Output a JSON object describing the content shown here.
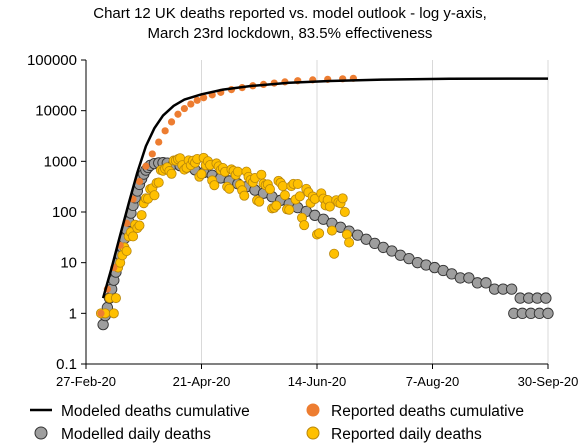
{
  "chart_data": {
    "type": "scatter",
    "title_line1": "Chart 12 UK deaths reported vs. model outlook - log y-axis,",
    "title_line2": "March 23rd lockdown, 83.5% effectiveness",
    "y_scale": "log",
    "ylim": [
      0.1,
      100000
    ],
    "y_ticks": [
      "0.1",
      "1",
      "10",
      "100",
      "1000",
      "10000",
      "100000"
    ],
    "xlim": [
      "2020-02-27",
      "2020-09-30"
    ],
    "x_ticks": [
      "27-Feb-20",
      "21-Apr-20",
      "14-Jun-20",
      "7-Aug-20",
      "30-Sep-20"
    ],
    "grid": "vertical",
    "legend_position": "bottom",
    "colors": {
      "modeled_cumulative": "#000000",
      "reported_cumulative": "#ED7D31",
      "modelled_daily_fill": "#9E9E9E",
      "reported_daily_fill": "#FFC000"
    },
    "series": [
      {
        "name": "Modeled deaths cumulative",
        "style": "line",
        "points": [
          [
            "2020-03-06",
            2
          ],
          [
            "2020-03-10",
            8
          ],
          [
            "2020-03-14",
            35
          ],
          [
            "2020-03-18",
            150
          ],
          [
            "2020-03-22",
            600
          ],
          [
            "2020-03-26",
            2000
          ],
          [
            "2020-03-30",
            4500
          ],
          [
            "2020-04-03",
            8000
          ],
          [
            "2020-04-08",
            12500
          ],
          [
            "2020-04-13",
            16500
          ],
          [
            "2020-04-21",
            21000
          ],
          [
            "2020-05-01",
            26000
          ],
          [
            "2020-05-15",
            31000
          ],
          [
            "2020-06-01",
            35500
          ],
          [
            "2020-06-20",
            38500
          ],
          [
            "2020-07-15",
            41000
          ],
          [
            "2020-08-15",
            42500
          ],
          [
            "2020-09-30",
            43000
          ]
        ]
      },
      {
        "name": "Reported deaths cumulative",
        "style": "marker",
        "points": [
          [
            "2020-03-05",
            1
          ],
          [
            "2020-03-08",
            3
          ],
          [
            "2020-03-11",
            8
          ],
          [
            "2020-03-14",
            22
          ],
          [
            "2020-03-17",
            60
          ],
          [
            "2020-03-20",
            180
          ],
          [
            "2020-03-23",
            400
          ],
          [
            "2020-03-26",
            800
          ],
          [
            "2020-03-29",
            1400
          ],
          [
            "2020-04-01",
            2400
          ],
          [
            "2020-04-04",
            4000
          ],
          [
            "2020-04-07",
            6000
          ],
          [
            "2020-04-10",
            8500
          ],
          [
            "2020-04-13",
            11000
          ],
          [
            "2020-04-16",
            13500
          ],
          [
            "2020-04-19",
            16000
          ],
          [
            "2020-04-22",
            18000
          ],
          [
            "2020-04-26",
            20500
          ],
          [
            "2020-04-30",
            23000
          ],
          [
            "2020-05-05",
            26000
          ],
          [
            "2020-05-10",
            28500
          ],
          [
            "2020-05-15",
            31000
          ],
          [
            "2020-05-20",
            33000
          ],
          [
            "2020-05-25",
            35000
          ],
          [
            "2020-05-30",
            37000
          ],
          [
            "2020-06-05",
            39000
          ],
          [
            "2020-06-12",
            40500
          ],
          [
            "2020-06-19",
            41500
          ],
          [
            "2020-06-26",
            42500
          ],
          [
            "2020-07-01",
            43500
          ]
        ]
      },
      {
        "name": "Modelled daily deaths",
        "style": "marker",
        "points": [
          [
            "2020-03-06",
            0.6
          ],
          [
            "2020-03-07",
            0.9
          ],
          [
            "2020-03-08",
            1.3
          ],
          [
            "2020-03-09",
            2
          ],
          [
            "2020-03-10",
            3
          ],
          [
            "2020-03-11",
            4.5
          ],
          [
            "2020-03-12",
            6.5
          ],
          [
            "2020-03-13",
            10
          ],
          [
            "2020-03-14",
            14
          ],
          [
            "2020-03-15",
            20
          ],
          [
            "2020-03-16",
            30
          ],
          [
            "2020-03-17",
            45
          ],
          [
            "2020-03-18",
            65
          ],
          [
            "2020-03-19",
            95
          ],
          [
            "2020-03-20",
            135
          ],
          [
            "2020-03-21",
            190
          ],
          [
            "2020-03-22",
            260
          ],
          [
            "2020-03-23",
            350
          ],
          [
            "2020-03-24",
            450
          ],
          [
            "2020-03-25",
            560
          ],
          [
            "2020-03-26",
            670
          ],
          [
            "2020-03-27",
            760
          ],
          [
            "2020-03-28",
            830
          ],
          [
            "2020-03-30",
            900
          ],
          [
            "2020-04-01",
            930
          ],
          [
            "2020-04-03",
            940
          ],
          [
            "2020-04-05",
            920
          ],
          [
            "2020-04-08",
            880
          ],
          [
            "2020-04-11",
            820
          ],
          [
            "2020-04-14",
            760
          ],
          [
            "2020-04-18",
            680
          ],
          [
            "2020-04-22",
            600
          ],
          [
            "2020-04-26",
            530
          ],
          [
            "2020-04-30",
            470
          ],
          [
            "2020-05-04",
            410
          ],
          [
            "2020-05-08",
            360
          ],
          [
            "2020-05-12",
            315
          ],
          [
            "2020-05-16",
            270
          ],
          [
            "2020-05-20",
            235
          ],
          [
            "2020-05-24",
            200
          ],
          [
            "2020-05-28",
            170
          ],
          [
            "2020-06-01",
            145
          ],
          [
            "2020-06-05",
            122
          ],
          [
            "2020-06-09",
            103
          ],
          [
            "2020-06-13",
            86
          ],
          [
            "2020-06-17",
            72
          ],
          [
            "2020-06-21",
            60
          ],
          [
            "2020-06-25",
            50
          ],
          [
            "2020-06-29",
            42
          ],
          [
            "2020-07-03",
            35
          ],
          [
            "2020-07-07",
            29
          ],
          [
            "2020-07-11",
            24
          ],
          [
            "2020-07-15",
            20
          ],
          [
            "2020-07-19",
            17
          ],
          [
            "2020-07-23",
            14
          ],
          [
            "2020-07-27",
            12
          ],
          [
            "2020-07-31",
            10
          ],
          [
            "2020-08-04",
            9
          ],
          [
            "2020-08-08",
            8
          ],
          [
            "2020-08-12",
            7
          ],
          [
            "2020-08-16",
            6
          ],
          [
            "2020-08-20",
            5
          ],
          [
            "2020-08-24",
            5
          ],
          [
            "2020-08-28",
            4
          ],
          [
            "2020-09-01",
            4
          ],
          [
            "2020-09-05",
            3
          ],
          [
            "2020-09-09",
            3
          ],
          [
            "2020-09-13",
            3
          ],
          [
            "2020-09-17",
            2
          ],
          [
            "2020-09-21",
            2
          ],
          [
            "2020-09-25",
            2
          ],
          [
            "2020-09-29",
            2
          ],
          [
            "2020-09-14",
            1
          ],
          [
            "2020-09-18",
            1
          ],
          [
            "2020-09-22",
            1
          ],
          [
            "2020-09-26",
            1
          ],
          [
            "2020-09-30",
            1
          ]
        ]
      },
      {
        "name": "Reported daily deaths",
        "style": "marker",
        "points": [
          [
            "2020-03-05",
            1
          ],
          [
            "2020-03-07",
            1
          ],
          [
            "2020-03-09",
            2
          ],
          [
            "2020-03-11",
            1
          ],
          [
            "2020-03-12",
            2
          ],
          [
            "2020-03-13",
            8
          ],
          [
            "2020-03-14",
            10
          ],
          [
            "2020-03-15",
            14
          ],
          [
            "2020-03-16",
            20
          ],
          [
            "2020-03-17",
            17
          ],
          [
            "2020-03-18",
            33
          ],
          [
            "2020-03-19",
            40
          ],
          [
            "2020-03-20",
            33
          ],
          [
            "2020-03-21",
            56
          ],
          [
            "2020-03-22",
            48
          ],
          [
            "2020-03-23",
            54
          ],
          [
            "2020-03-24",
            87
          ],
          [
            "2020-03-25",
            149
          ],
          [
            "2020-03-26",
            186
          ],
          [
            "2020-03-27",
            183
          ],
          [
            "2020-03-28",
            284
          ],
          [
            "2020-03-29",
            294
          ],
          [
            "2020-03-30",
            214
          ],
          [
            "2020-03-31",
            374
          ],
          [
            "2020-04-01",
            382
          ],
          [
            "2020-04-02",
            670
          ],
          [
            "2020-04-03",
            652
          ],
          [
            "2020-04-04",
            714
          ],
          [
            "2020-04-05",
            760
          ],
          [
            "2020-04-06",
            644
          ],
          [
            "2020-04-07",
            568
          ],
          [
            "2020-04-08",
            1038
          ],
          [
            "2020-04-09",
            1034
          ],
          [
            "2020-04-10",
            1103
          ],
          [
            "2020-04-11",
            1152
          ],
          [
            "2020-04-12",
            839
          ],
          [
            "2020-04-13",
            686
          ],
          [
            "2020-04-14",
            744
          ],
          [
            "2020-04-15",
            1044
          ],
          [
            "2020-04-16",
            842
          ],
          [
            "2020-04-17",
            1029
          ],
          [
            "2020-04-18",
            935
          ],
          [
            "2020-04-19",
            1115
          ],
          [
            "2020-04-20",
            498
          ],
          [
            "2020-04-21",
            559
          ],
          [
            "2020-04-22",
            1172
          ],
          [
            "2020-04-23",
            837
          ],
          [
            "2020-04-24",
            1005
          ],
          [
            "2020-04-25",
            843
          ],
          [
            "2020-04-26",
            420
          ],
          [
            "2020-04-27",
            338
          ],
          [
            "2020-04-28",
            909
          ],
          [
            "2020-04-29",
            795
          ],
          [
            "2020-04-30",
            674
          ],
          [
            "2020-05-01",
            739
          ],
          [
            "2020-05-02",
            621
          ],
          [
            "2020-05-03",
            315
          ],
          [
            "2020-05-04",
            288
          ],
          [
            "2020-05-05",
            693
          ],
          [
            "2020-05-06",
            649
          ],
          [
            "2020-05-07",
            539
          ],
          [
            "2020-05-08",
            626
          ],
          [
            "2020-05-09",
            346
          ],
          [
            "2020-05-10",
            268
          ],
          [
            "2020-05-11",
            210
          ],
          [
            "2020-05-12",
            627
          ],
          [
            "2020-05-13",
            494
          ],
          [
            "2020-05-14",
            428
          ],
          [
            "2020-05-15",
            384
          ],
          [
            "2020-05-16",
            468
          ],
          [
            "2020-05-17",
            170
          ],
          [
            "2020-05-18",
            160
          ],
          [
            "2020-05-19",
            545
          ],
          [
            "2020-05-20",
            363
          ],
          [
            "2020-05-21",
            338
          ],
          [
            "2020-05-22",
            351
          ],
          [
            "2020-05-23",
            282
          ],
          [
            "2020-05-24",
            118
          ],
          [
            "2020-05-25",
            121
          ],
          [
            "2020-05-26",
            134
          ],
          [
            "2020-05-27",
            412
          ],
          [
            "2020-05-28",
            377
          ],
          [
            "2020-05-29",
            324
          ],
          [
            "2020-05-30",
            215
          ],
          [
            "2020-05-31",
            113
          ],
          [
            "2020-06-01",
            111
          ],
          [
            "2020-06-02",
            324
          ],
          [
            "2020-06-03",
            359
          ],
          [
            "2020-06-04",
            176
          ],
          [
            "2020-06-05",
            357
          ],
          [
            "2020-06-06",
            204
          ],
          [
            "2020-06-07",
            77
          ],
          [
            "2020-06-08",
            55
          ],
          [
            "2020-06-09",
            286
          ],
          [
            "2020-06-10",
            245
          ],
          [
            "2020-06-11",
            151
          ],
          [
            "2020-06-12",
            202
          ],
          [
            "2020-06-13",
            181
          ],
          [
            "2020-06-14",
            36
          ],
          [
            "2020-06-15",
            38
          ],
          [
            "2020-06-16",
            233
          ],
          [
            "2020-06-17",
            184
          ],
          [
            "2020-06-18",
            135
          ],
          [
            "2020-06-19",
            173
          ],
          [
            "2020-06-20",
            128
          ],
          [
            "2020-06-21",
            43
          ],
          [
            "2020-06-22",
            15
          ],
          [
            "2020-06-23",
            171
          ],
          [
            "2020-06-24",
            154
          ],
          [
            "2020-06-25",
            149
          ],
          [
            "2020-06-26",
            186
          ],
          [
            "2020-06-27",
            100
          ],
          [
            "2020-06-28",
            36
          ],
          [
            "2020-06-29",
            25
          ]
        ]
      }
    ]
  },
  "legend": {
    "modeled_cumulative": "Modeled deaths cumulative",
    "reported_cumulative": "Reported deaths cumulative",
    "modelled_daily": "Modelled daily deaths",
    "reported_daily": "Reported daily deaths"
  }
}
